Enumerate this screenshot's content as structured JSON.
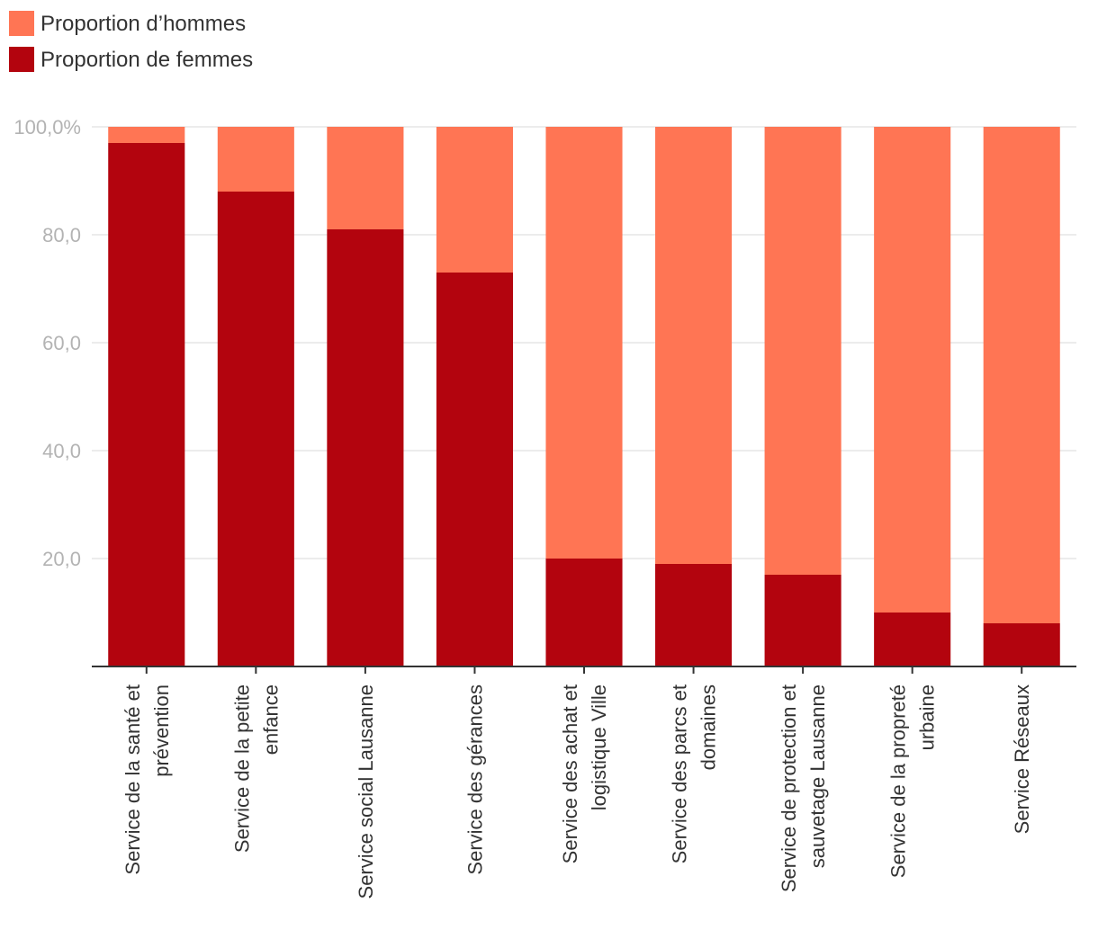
{
  "chart_data": {
    "type": "bar",
    "stacked": true,
    "title": "",
    "xlabel": "",
    "ylabel": "",
    "ylim": [
      0,
      100
    ],
    "yticks": [
      {
        "value": 20,
        "label": "20,0"
      },
      {
        "value": 40,
        "label": "40,0"
      },
      {
        "value": 60,
        "label": "60,0"
      },
      {
        "value": 80,
        "label": "80,0"
      },
      {
        "value": 100,
        "label": "100,0%"
      }
    ],
    "grid": true,
    "legend_position": "top-left",
    "categories": [
      [
        "Service de la santé et",
        "prévention"
      ],
      [
        "Service de la petite",
        "enfance"
      ],
      [
        "Service social Lausanne"
      ],
      [
        "Service des gérances"
      ],
      [
        "Service des achat et",
        "logistique Ville"
      ],
      [
        "Service des parcs et",
        "domaines"
      ],
      [
        "Service de protection et",
        "sauvetage Lausanne"
      ],
      [
        "Service de la propreté",
        "urbaine"
      ],
      [
        "Service Réseaux"
      ]
    ],
    "series": [
      {
        "name": "Proportion de femmes",
        "color": "#b3040e",
        "values": [
          97,
          88,
          81,
          73,
          20,
          19,
          17,
          10,
          8
        ]
      },
      {
        "name": "Proportion d’hommes",
        "color": "#ff7554",
        "values": [
          3,
          12,
          19,
          27,
          80,
          81,
          83,
          90,
          92
        ]
      }
    ],
    "legend_order": [
      1,
      0
    ]
  }
}
